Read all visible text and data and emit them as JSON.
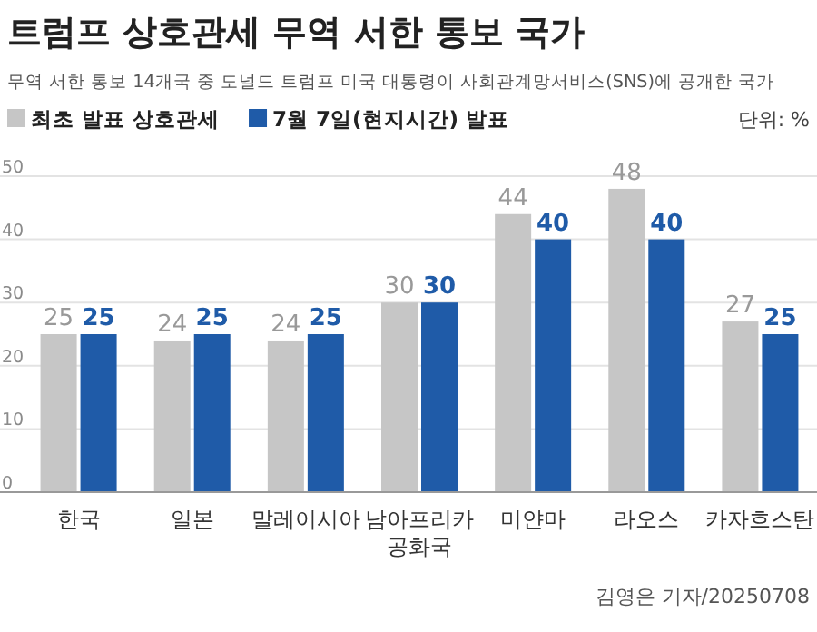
{
  "chart_data": {
    "type": "bar",
    "title": "트럼프 상호관세 무역 서한 통보 국가",
    "subtitle": "무역 서한 통보 14개국 중 도널드 트럼프 미국 대통령이 사회관계망서비스(SNS)에 공개한 국가",
    "ylabel": "단위: %",
    "categories": [
      "한국",
      "일본",
      "말레이시아",
      "남아프리카 공화국",
      "미얀마",
      "라오스",
      "카자흐스탄"
    ],
    "series": [
      {
        "name": "최초 발표 상호관세",
        "color": "#c6c6c6",
        "values": [
          25,
          24,
          24,
          30,
          44,
          48,
          27
        ]
      },
      {
        "name": "7월 7일(현지시간) 발표",
        "color": "#1f5ba8",
        "values": [
          25,
          25,
          25,
          30,
          40,
          40,
          25
        ]
      }
    ],
    "ylim": [
      0,
      50
    ],
    "yticks": [
      0,
      10,
      20,
      30,
      40,
      50
    ],
    "grid": "y",
    "legend": "top left",
    "data_labels": true,
    "annotations": [
      "김영은 기자/20250708"
    ]
  }
}
